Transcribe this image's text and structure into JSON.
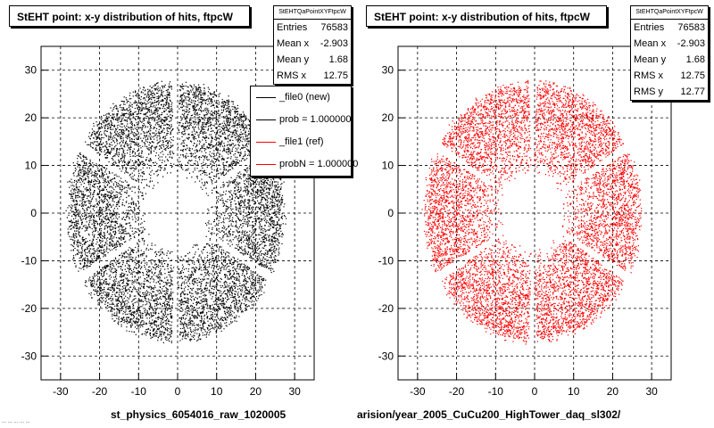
{
  "colors": {
    "left_hits": "#000000",
    "right_hits": "#ff0000",
    "frame": "#000000",
    "grid": "#000000"
  },
  "panels": [
    {
      "title": "StEHT point: x-y distribution of hits, ftpcW",
      "stats": {
        "name": "StEHTQaPointXYFtpcW",
        "rows": [
          {
            "label": "Entries",
            "value": "76583"
          },
          {
            "label": "Mean x",
            "value": "-2.903"
          },
          {
            "label": "Mean y",
            "value": "1.68"
          },
          {
            "label": "RMS x",
            "value": "12.75"
          }
        ]
      },
      "legend": [
        {
          "label": "_file0 (new)",
          "color": "#000000"
        },
        {
          "label": "prob = 1.000000",
          "color": "#000000"
        },
        {
          "label": "_file1 (ref)",
          "color": "#ff0000"
        },
        {
          "label": "probN = 1.000000",
          "color": "#ff0000"
        }
      ],
      "file_label": "st_physics_6054016_raw_1020005"
    },
    {
      "title": "StEHT point: x-y distribution of hits, ftpcW",
      "stats": {
        "name": "StEHTQaPointXYFtpcW",
        "rows": [
          {
            "label": "Entries",
            "value": "76583"
          },
          {
            "label": "Mean x",
            "value": "-2.903"
          },
          {
            "label": "Mean y",
            "value": "1.68"
          },
          {
            "label": "RMS x",
            "value": "12.75"
          },
          {
            "label": "RMS y",
            "value": "12.77"
          }
        ]
      },
      "file_label": "arision/year_2005_CuCu200_HighTower_daq_sl302/"
    }
  ],
  "footer": "... ... ... ... ...",
  "chart_data": [
    {
      "type": "scatter",
      "title": "StEHT point: x-y distribution of hits, ftpcW",
      "series": [
        {
          "name": "_file0 (new)",
          "color": "#000000"
        }
      ],
      "xlim": [
        -35,
        35
      ],
      "ylim": [
        -35,
        35
      ],
      "xticks": [
        -30,
        -20,
        -10,
        0,
        10,
        20,
        30
      ],
      "yticks": [
        -30,
        -20,
        -10,
        0,
        10,
        20,
        30
      ],
      "grid": true,
      "distribution": {
        "inner_radius": 7.5,
        "outer_radius": 28,
        "sector_gaps_deg": [
          30,
          90,
          150,
          210,
          270,
          330
        ],
        "entries": 76583
      }
    },
    {
      "type": "scatter",
      "title": "StEHT point: x-y distribution of hits, ftpcW",
      "series": [
        {
          "name": "_file1 (ref)",
          "color": "#ff0000"
        }
      ],
      "xlim": [
        -35,
        35
      ],
      "ylim": [
        -35,
        35
      ],
      "xticks": [
        -30,
        -20,
        -10,
        0,
        10,
        20,
        30
      ],
      "yticks": [
        -30,
        -20,
        -10,
        0,
        10,
        20,
        30
      ],
      "grid": true,
      "distribution": {
        "inner_radius": 7.5,
        "outer_radius": 28,
        "sector_gaps_deg": [
          30,
          90,
          150,
          210,
          270,
          330
        ],
        "entries": 76583
      }
    }
  ]
}
